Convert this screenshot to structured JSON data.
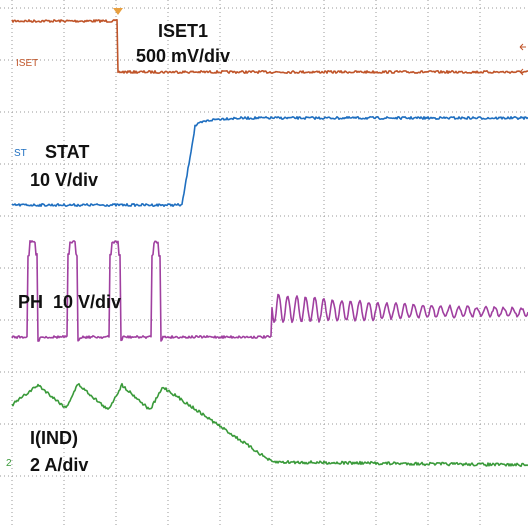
{
  "channels": {
    "iset": {
      "label": "ISET1",
      "scale": "500 mV/div",
      "tag": "ISET"
    },
    "stat": {
      "label": "STAT",
      "scale": "10 V/div",
      "tag": "ST"
    },
    "ph": {
      "label": "PH  10 V/div"
    },
    "ind": {
      "label": "I(IND)",
      "scale": "2 A/div",
      "tag": "2"
    }
  }
}
